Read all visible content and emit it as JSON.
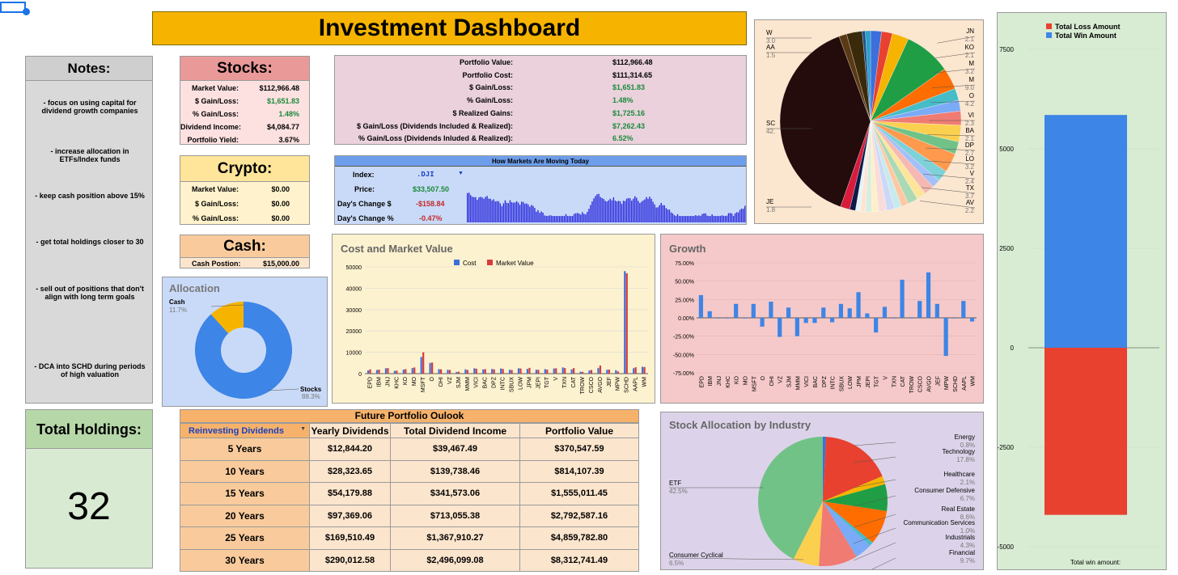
{
  "title": "Investment Dashboard",
  "notes": {
    "heading": "Notes:",
    "items": [
      "- focus on using capital for dividend growth companies",
      "- increase allocation in ETFs/Index funds",
      "- keep cash position above 15%",
      "- get total holdings closer to 30",
      "- sell out of positions that don't align with long term goals",
      "- DCA into SCHD during periods of high valuation"
    ]
  },
  "total_holdings": {
    "label": "Total Holdings:",
    "value": "32"
  },
  "stocks": {
    "heading": "Stocks:",
    "rows": [
      {
        "label": "Market Value:",
        "value": "$112,966.48",
        "tone": "black"
      },
      {
        "label": "$ Gain/Loss:",
        "value": "$1,651.83",
        "tone": "green"
      },
      {
        "label": "% Gain/Loss:",
        "value": "1.48%",
        "tone": "green"
      },
      {
        "label": "Dividend Income:",
        "value": "$4,084.77",
        "tone": "black"
      },
      {
        "label": "Portfolio Yield:",
        "value": "3.67%",
        "tone": "black"
      }
    ]
  },
  "crypto": {
    "heading": "Crypto:",
    "rows": [
      {
        "label": "Market Value:",
        "value": "$0.00"
      },
      {
        "label": "$ Gain/Loss:",
        "value": "$0.00"
      },
      {
        "label": "% Gain/Loss:",
        "value": "$0.00"
      }
    ]
  },
  "cash": {
    "heading": "Cash:",
    "label": "Cash Postion:",
    "value": "$15,000.00"
  },
  "portfolio_summary": {
    "rows": [
      {
        "label": "Portfolio Value:",
        "value": "$112,966.48",
        "tone": "black"
      },
      {
        "label": "Portfolio Cost:",
        "value": "$111,314.65",
        "tone": "black"
      },
      {
        "label": "$ Gain/Loss:",
        "value": "$1,651.83",
        "tone": "green"
      },
      {
        "label": "% Gain/Loss:",
        "value": "1.48%",
        "tone": "green"
      },
      {
        "label": "$ Realized Gains:",
        "value": "$1,725.16",
        "tone": "green"
      },
      {
        "label": "$ Gain/Loss (Dividends Included & Realized):",
        "value": "$7,262.43",
        "tone": "green"
      },
      {
        "label": "% Gain/Loss (Dividends Inluded & Realized):",
        "value": "6.52%",
        "tone": "green"
      }
    ]
  },
  "markets": {
    "title": "How Markets Are Moving Today",
    "index_label": "Index:",
    "index_value": ".DJI",
    "price_label": "Price:",
    "price_value": "$33,507.50",
    "day_change_label": "Day's Change $",
    "day_change_value": "-$158.84",
    "day_pct_label": "Day's Change %",
    "day_pct_value": "-0.47%",
    "colors": {
      "bars": "#2b2bdc"
    }
  },
  "allocation": {
    "title": "Allocation",
    "chart_data": {
      "type": "pie",
      "title": "Allocation",
      "categories": [
        "Stocks",
        "Cash"
      ],
      "values": [
        88.3,
        11.7
      ],
      "labels": [
        "Stocks",
        "Cash"
      ],
      "percent_labels": [
        "88.3%",
        "11.7%"
      ],
      "colors": [
        "#3d85e6",
        "#f6b400"
      ]
    }
  },
  "cost_market": {
    "chart_data": {
      "type": "bar",
      "title": "Cost and Market Value",
      "legend": [
        "Cost",
        "Market Value"
      ],
      "legend_position": "top",
      "ylim": [
        0,
        50000
      ],
      "yticks": [
        "0",
        "10000",
        "20000",
        "30000",
        "40000",
        "50000"
      ],
      "categories": [
        "EPD",
        "IBM",
        "JNJ",
        "KHC",
        "KO",
        "MO",
        "MSFT",
        "O",
        "OHI",
        "VZ",
        "SJM",
        "MMM",
        "VICI",
        "BAC",
        "DPZ",
        "INTC",
        "SBUX",
        "LOW",
        "JPM",
        "JEPI",
        "TGT",
        "V",
        "TXN",
        "CAT",
        "TROW",
        "CSCO",
        "AVGO",
        "JEF",
        "MPW",
        "SCHD",
        "AAPL",
        "WM"
      ],
      "series": [
        {
          "name": "Cost",
          "color": "#3d6fdc",
          "values": [
            1500,
            1700,
            2500,
            1300,
            1900,
            2600,
            7800,
            5000,
            2100,
            1800,
            800,
            2000,
            2500,
            2000,
            2200,
            2400,
            1800,
            2500,
            2200,
            1800,
            2100,
            2400,
            2900,
            2000,
            900,
            1500,
            2600,
            1800,
            1600,
            48000,
            2500,
            3200
          ]
        },
        {
          "name": "Market Value",
          "color": "#d83b3b",
          "values": [
            2000,
            1900,
            2600,
            1400,
            2100,
            2900,
            10000,
            5200,
            2000,
            1700,
            900,
            1700,
            2300,
            2100,
            2000,
            2200,
            1700,
            2400,
            2700,
            1800,
            1900,
            2500,
            2600,
            2600,
            800,
            1700,
            3800,
            1900,
            1000,
            47000,
            3000,
            3100
          ]
        }
      ],
      "colors": {
        "background": "#fdf2cf"
      }
    }
  },
  "growth": {
    "chart_data": {
      "type": "bar",
      "title": "Growth",
      "ylim": [
        -75,
        75
      ],
      "yticks": [
        "75.00%",
        "50.00%",
        "25.00%",
        "0.00%",
        "-25.00%",
        "-50.00%",
        "-75.00%"
      ],
      "categories": [
        "EPD",
        "IBM",
        "JNJ",
        "KHC",
        "KO",
        "MO",
        "MSFT",
        "O",
        "OHI",
        "VZ",
        "SJM",
        "MMM",
        "VICI",
        "BAC",
        "DPZ",
        "INTC",
        "SBUX",
        "LOW",
        "JPM",
        "JEPI",
        "TGT",
        "V",
        "TXN",
        "CAT",
        "TROW",
        "CSCO",
        "AVGO",
        "JEF",
        "MPW",
        "SCHD",
        "AAPL",
        "WM"
      ],
      "values": [
        31,
        9,
        0,
        0,
        19,
        0,
        19,
        -12,
        22,
        -26,
        14,
        -25,
        -7,
        -7,
        14,
        -6,
        19,
        13,
        35,
        6,
        -20,
        15,
        0,
        52,
        0,
        23,
        62,
        19,
        -52,
        0,
        23,
        -5
      ],
      "colors": {
        "bars": "#3d85e6",
        "background": "#f5c9c9"
      }
    }
  },
  "holdings_pie": {
    "chart_data": {
      "type": "pie",
      "categories": [
        "SC",
        "JE",
        "W",
        "AA",
        "JN",
        "KO",
        "M",
        "M",
        "O",
        "VI",
        "BA",
        "DP",
        "LO",
        "V",
        "TX",
        "AV"
      ],
      "values": [
        42,
        1.8,
        3.0,
        1.5,
        2.1,
        2.1,
        3.2,
        9.0,
        4.2,
        2.3,
        2.1,
        2.7,
        3.2,
        2.4,
        3.7,
        2.2
      ],
      "label_values": {
        "SC": "42.",
        "JE": "1.8",
        "W": "3.0",
        "AA": "1.5",
        "JN": "2.1",
        "KO": "2.1",
        "M1": "3.2",
        "M2": "9.0",
        "O": "4.2",
        "VI": "2.3",
        "BA": "2.1",
        "DP": "2.7",
        "LO": "3.2",
        "V": "2.4",
        "TX": "3.7",
        "AV": "2.2"
      },
      "colors": {
        "background": "#fbe6cf"
      }
    }
  },
  "winloss": {
    "chart_data": {
      "type": "bar",
      "legend": [
        "Total Loss Amount",
        "Total Win Amount"
      ],
      "legend_position": "top",
      "ylim": [
        -5000,
        7500
      ],
      "yticks": [
        "7500",
        "5000",
        "2500",
        "0",
        "-2500",
        "-5000"
      ],
      "series": [
        {
          "name": "Total Loss Amount",
          "color": "#e8412f",
          "values": [
            -4200
          ]
        },
        {
          "name": "Total Win Amount",
          "color": "#3d85e6",
          "values": [
            5850
          ]
        }
      ],
      "xlabel": "Total win amount:",
      "colors": {
        "background": "#d8ecd3"
      }
    }
  },
  "industry": {
    "chart_data": {
      "type": "pie",
      "title": "Stock Allocation by Industry",
      "categories": [
        "Energy",
        "Technology",
        "Healthcare",
        "Consumer Defensive",
        "Real Estate",
        "Communication Services",
        "Industrials",
        "Financial",
        "Consumer Cyclical",
        "ETF"
      ],
      "values": [
        0.8,
        17.8,
        2.1,
        6.7,
        8.6,
        1.0,
        4.3,
        9.7,
        6.5,
        42.5
      ],
      "percent_labels": [
        "0.8%",
        "17.8%",
        "2.1%",
        "6.7%",
        "8.6%",
        "1.0%",
        "4.3%",
        "9.7%",
        "6.5%",
        "42.5%"
      ],
      "colors": [
        "#3d6fdc",
        "#e8412f",
        "#f6b400",
        "#1f9e45",
        "#ff6d00",
        "#46bdc6",
        "#7baaf7",
        "#f07b72",
        "#fcd04f",
        "#71c287"
      ],
      "background": "#dcd3ea"
    }
  },
  "future": {
    "title": "Future Portfolio Oulook",
    "dropdown_value": "Reinvesting Dividends",
    "headers": [
      "Yearly Dividends",
      "Total Dividend Income",
      "Portfolio Value"
    ],
    "rows": [
      [
        "5 Years",
        "$12,844.20",
        "$39,467.49",
        "$370,547.59"
      ],
      [
        "10 Years",
        "$28,323.65",
        "$139,738.46",
        "$814,107.39"
      ],
      [
        "15 Years",
        "$54,179.88",
        "$341,573.06",
        "$1,555,011.45"
      ],
      [
        "20 Years",
        "$97,369.06",
        "$713,055.38",
        "$2,792,587.16"
      ],
      [
        "25 Years",
        "$169,510.49",
        "$1,367,910.27",
        "$4,859,782.80"
      ],
      [
        "30 Years",
        "$290,012.58",
        "$2,496,099.08",
        "$8,312,741.49"
      ]
    ]
  }
}
